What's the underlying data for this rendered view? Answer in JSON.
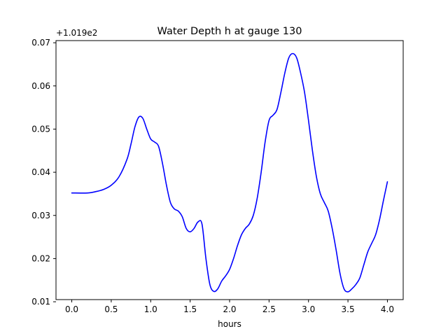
{
  "chart_data": {
    "type": "line",
    "title": "Water Depth h at gauge 130",
    "xlabel": "hours",
    "ylabel": "",
    "y_offset_label": "+1.019e2",
    "xlim": [
      -0.2,
      4.2
    ],
    "ylim": [
      0.0105,
      0.0705
    ],
    "xticks": [
      0.0,
      0.5,
      1.0,
      1.5,
      2.0,
      2.5,
      3.0,
      3.5,
      4.0
    ],
    "xtick_labels": [
      "0.0",
      "0.5",
      "1.0",
      "1.5",
      "2.0",
      "2.5",
      "3.0",
      "3.5",
      "4.0"
    ],
    "yticks": [
      0.01,
      0.02,
      0.03,
      0.04,
      0.05,
      0.06,
      0.07
    ],
    "ytick_labels": [
      "0.01",
      "0.02",
      "0.03",
      "0.04",
      "0.05",
      "0.06",
      "0.07"
    ],
    "grid": false,
    "colors": {
      "line": "#0000ff",
      "axes": "#000000",
      "background": "#ffffff"
    },
    "series": [
      {
        "x": [
          0.0,
          0.2,
          0.3,
          0.4,
          0.5,
          0.6,
          0.7,
          0.75,
          0.8,
          0.85,
          0.9,
          0.95,
          1.0,
          1.05,
          1.1,
          1.15,
          1.2,
          1.25,
          1.3,
          1.35,
          1.4,
          1.45,
          1.5,
          1.55,
          1.6,
          1.65,
          1.7,
          1.75,
          1.8,
          1.85,
          1.9,
          1.95,
          2.0,
          2.05,
          2.1,
          2.15,
          2.2,
          2.25,
          2.3,
          2.35,
          2.4,
          2.45,
          2.5,
          2.55,
          2.6,
          2.65,
          2.7,
          2.75,
          2.8,
          2.85,
          2.9,
          2.95,
          3.0,
          3.05,
          3.1,
          3.15,
          3.2,
          3.25,
          3.3,
          3.35,
          3.4,
          3.45,
          3.5,
          3.55,
          3.6,
          3.65,
          3.7,
          3.75,
          3.8,
          3.85,
          3.9,
          3.95,
          4.0
        ],
        "y": [
          0.0352,
          0.0352,
          0.0355,
          0.036,
          0.037,
          0.039,
          0.043,
          0.0465,
          0.0505,
          0.0528,
          0.0525,
          0.05,
          0.0477,
          0.047,
          0.046,
          0.042,
          0.037,
          0.033,
          0.0315,
          0.031,
          0.0297,
          0.027,
          0.0262,
          0.027,
          0.0285,
          0.028,
          0.02,
          0.014,
          0.0124,
          0.013,
          0.0148,
          0.016,
          0.0175,
          0.02,
          0.023,
          0.0255,
          0.027,
          0.028,
          0.03,
          0.034,
          0.04,
          0.047,
          0.052,
          0.0532,
          0.0545,
          0.0585,
          0.063,
          0.0665,
          0.0675,
          0.0665,
          0.063,
          0.0585,
          0.052,
          0.045,
          0.039,
          0.035,
          0.033,
          0.031,
          0.027,
          0.022,
          0.0165,
          0.013,
          0.0123,
          0.013,
          0.014,
          0.0155,
          0.0185,
          0.0215,
          0.0235,
          0.0255,
          0.029,
          0.0335,
          0.0378
        ]
      }
    ]
  }
}
